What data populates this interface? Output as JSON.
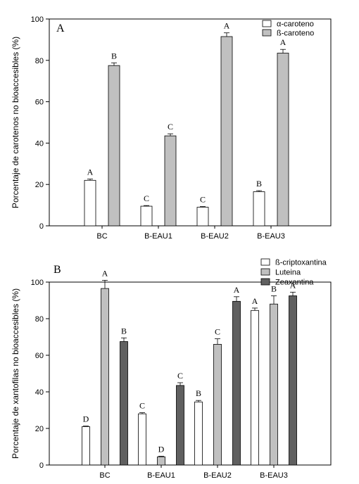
{
  "chart_data": [
    {
      "type": "bar",
      "panel_letter": "A",
      "categories": [
        "BC",
        "B-EAU1",
        "B-EAU2",
        "B-EAU3"
      ],
      "ylabel": "Porcentaje de carotenos no bioaccesibles (%)",
      "ylim": [
        0,
        100
      ],
      "yticks": [
        0,
        20,
        40,
        60,
        80,
        100
      ],
      "legend_position": "top-right",
      "series": [
        {
          "name": "α-caroteno",
          "color": "#ffffff",
          "values": [
            22,
            9.5,
            9,
            16.5
          ],
          "errors": [
            0.6,
            0.3,
            0.3,
            0.5
          ],
          "letters": [
            "A",
            "C",
            "C",
            "B"
          ]
        },
        {
          "name": "ß-caroteno",
          "color": "#c0c0c0",
          "values": [
            77.5,
            43.5,
            91.5,
            83.5
          ],
          "errors": [
            1.3,
            1.0,
            1.8,
            1.8
          ],
          "letters": [
            "B",
            "C",
            "A",
            "A"
          ]
        }
      ]
    },
    {
      "type": "bar",
      "panel_letter": "B",
      "categories": [
        "BC",
        "B-EAU1",
        "B-EAU2",
        "B-EAU3"
      ],
      "ylabel": "Porcentaje de xantofilas no bioaccesibles (%)",
      "ylim": [
        0,
        100
      ],
      "yticks": [
        0,
        20,
        40,
        60,
        80,
        100
      ],
      "legend_position": "top-right",
      "series": [
        {
          "name": "ß-criptoxantina",
          "color": "#ffffff",
          "values": [
            21,
            28,
            34.5,
            84.5
          ],
          "errors": [
            0.3,
            0.6,
            0.8,
            1.3
          ],
          "letters": [
            "D",
            "C",
            "B",
            "A"
          ]
        },
        {
          "name": "Luteina",
          "color": "#c0c0c0",
          "values": [
            96.5,
            4.5,
            66,
            88
          ],
          "errors": [
            4.5,
            0.3,
            3.0,
            4.5
          ],
          "letters": [
            "A",
            "D",
            "C",
            "B"
          ]
        },
        {
          "name": "Zeaxantina",
          "color": "#606060",
          "values": [
            67.5,
            43.5,
            89.5,
            92.5
          ],
          "errors": [
            2.0,
            1.5,
            2.5,
            2.0
          ],
          "letters": [
            "B",
            "C",
            "A",
            "A"
          ]
        }
      ]
    }
  ]
}
